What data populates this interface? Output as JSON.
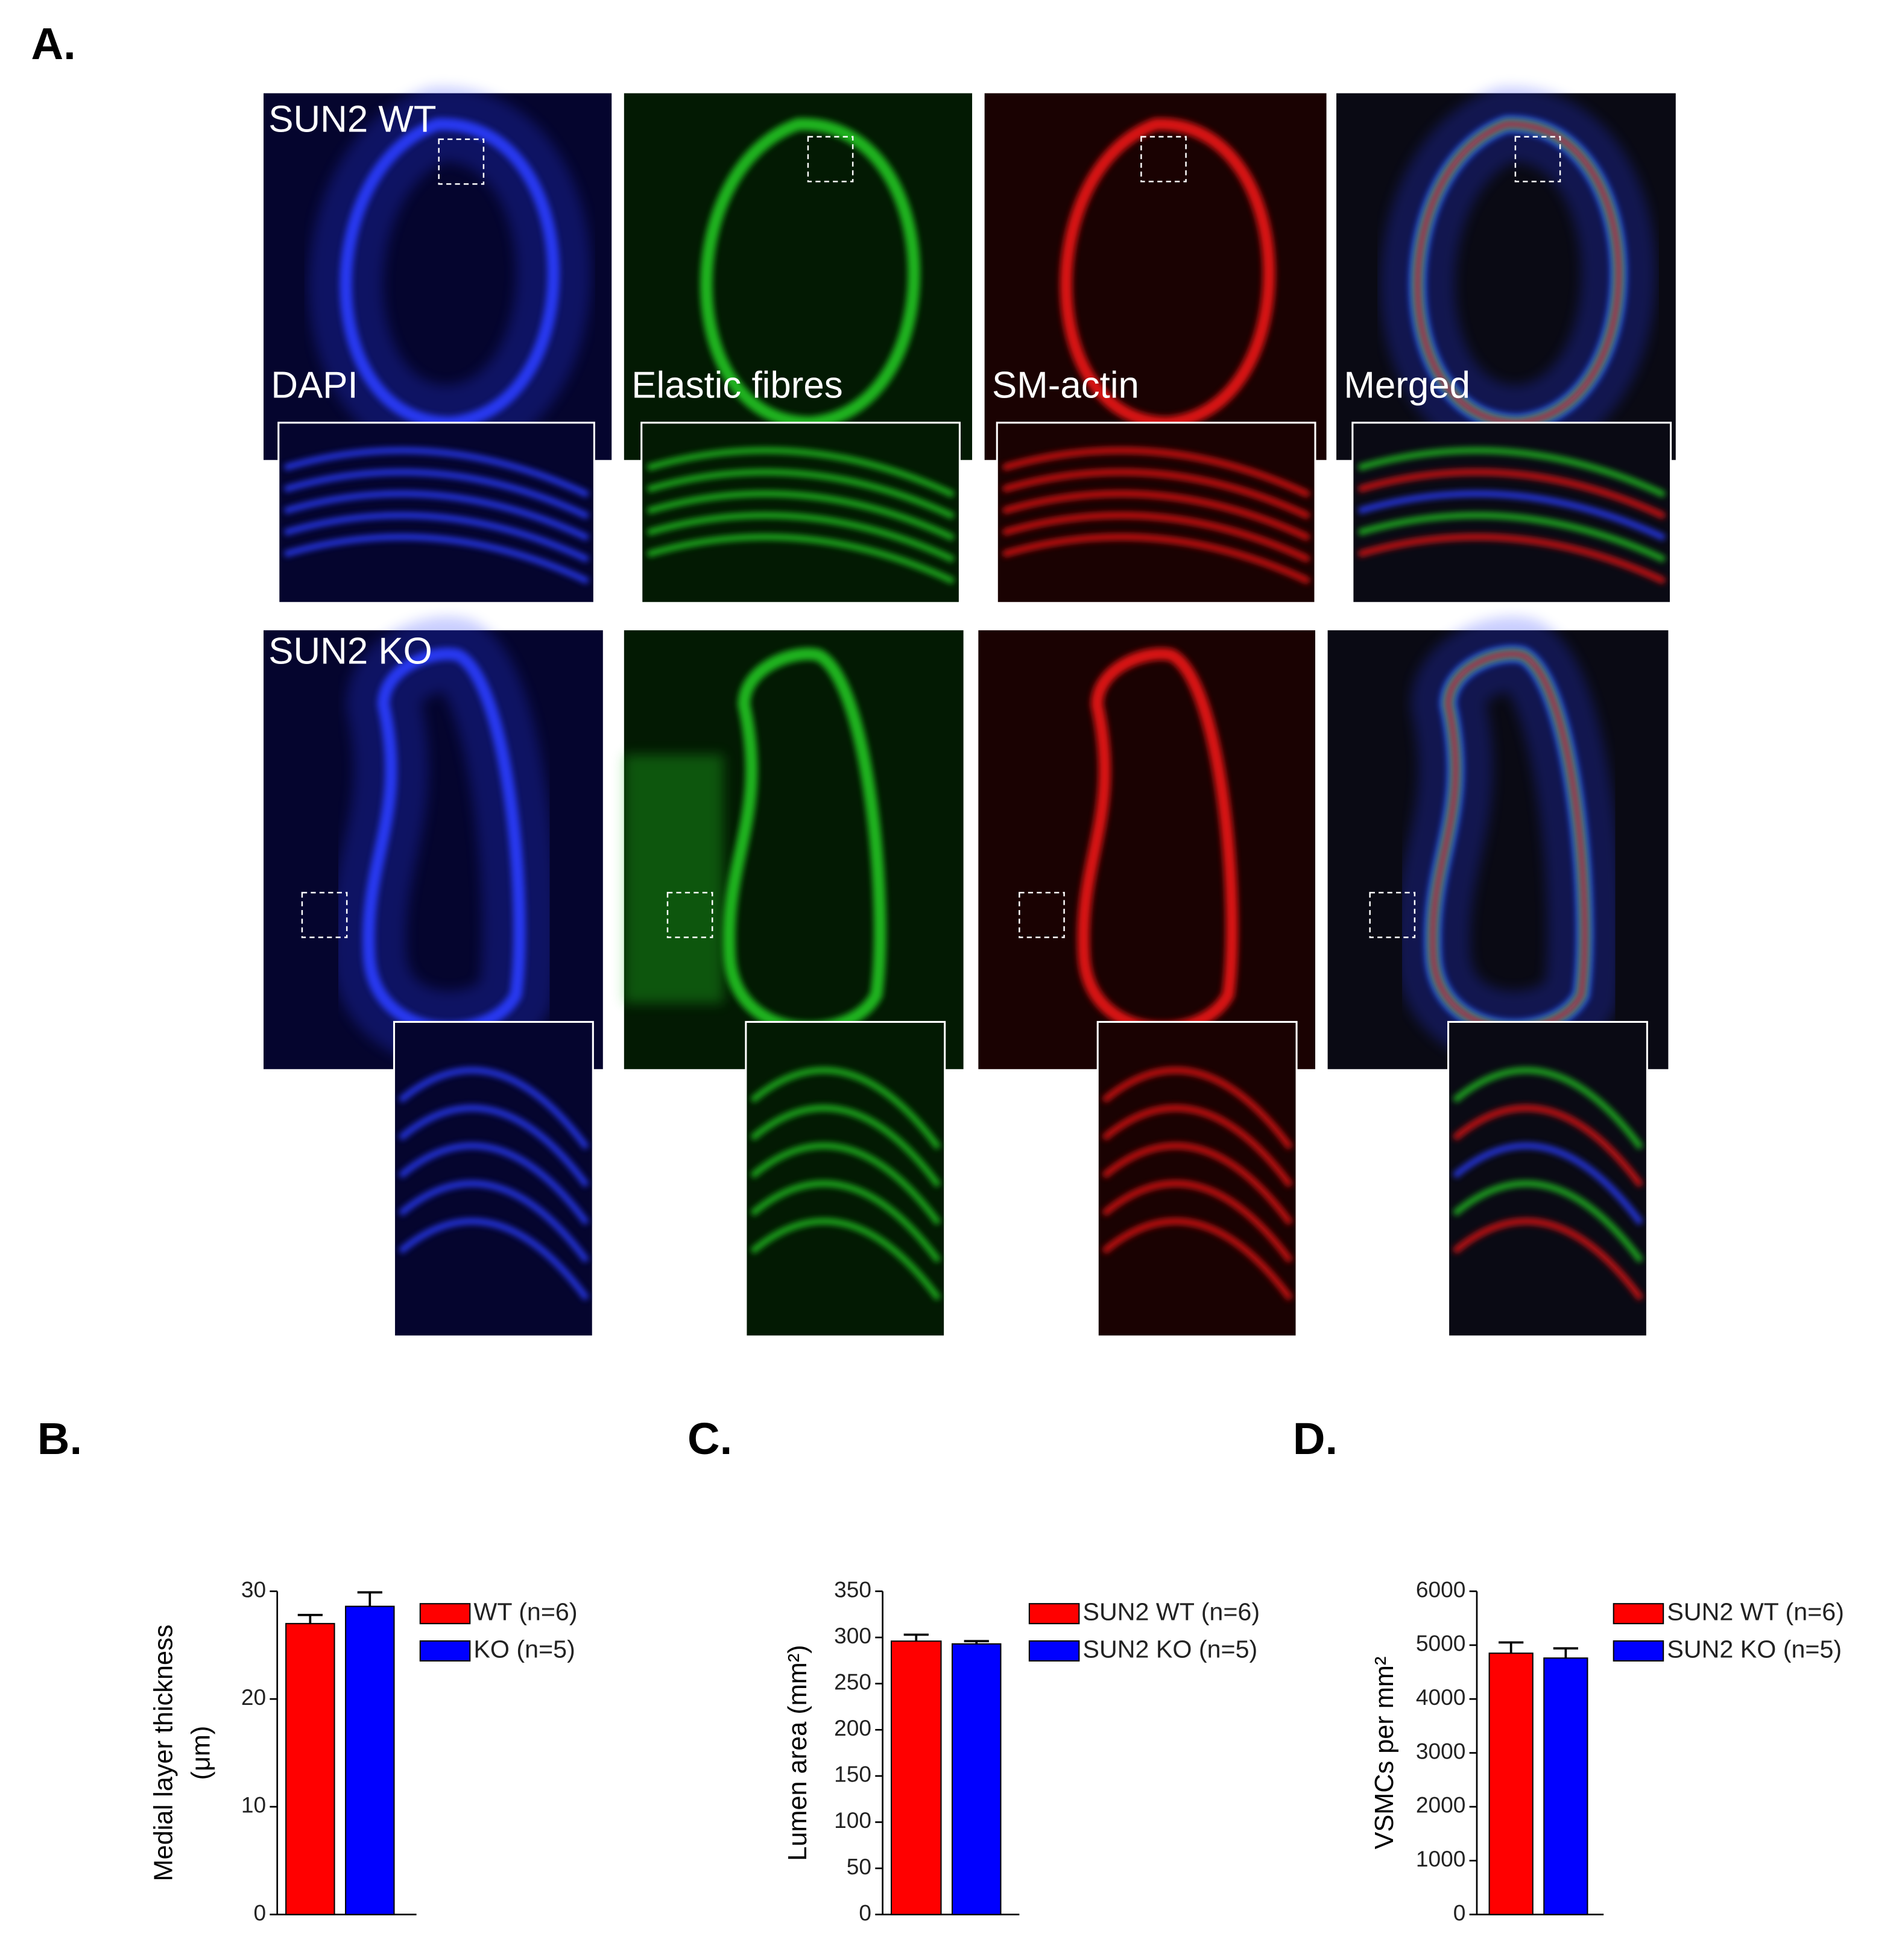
{
  "panel_labels": [
    "A.",
    "B.",
    "C.",
    "D."
  ],
  "figure_a": {
    "row_labels": [
      "SUN2 WT",
      "SUN2 KO"
    ],
    "channel_labels": [
      "DAPI",
      "Elastic fibres",
      "SM-actin",
      "Merged"
    ]
  },
  "chart_data": [
    {
      "type": "bar",
      "ylabel": [
        "Medial layer thickness",
        "(μm)"
      ],
      "series": [
        {
          "name": "WT (n=6)",
          "color": "#ff0000",
          "values": [
            27
          ],
          "errors": [
            0.8
          ]
        },
        {
          "name": "KO (n=5)",
          "color": "#0000ff",
          "values": [
            28.6
          ],
          "errors": [
            1.3
          ]
        }
      ],
      "ylim": [
        0,
        30
      ],
      "yticks": [
        0,
        10,
        20,
        30
      ]
    },
    {
      "type": "bar",
      "ylabel": [
        "Lumen area (mm²)"
      ],
      "series": [
        {
          "name": "SUN2 WT (n=6)",
          "color": "#ff0000",
          "values": [
            296
          ],
          "errors": [
            7
          ]
        },
        {
          "name": "SUN2 KO (n=5)",
          "color": "#0000ff",
          "values": [
            293
          ],
          "errors": [
            3
          ]
        }
      ],
      "ylim": [
        0,
        350
      ],
      "yticks": [
        0,
        50,
        100,
        150,
        200,
        250,
        300,
        350
      ]
    },
    {
      "type": "bar",
      "ylabel": [
        "VSMCs per mm²"
      ],
      "series": [
        {
          "name": "SUN2 WT (n=6)",
          "color": "#ff0000",
          "values": [
            4850
          ],
          "errors": [
            200
          ]
        },
        {
          "name": "SUN2 KO (n=5)",
          "color": "#0000ff",
          "values": [
            4760
          ],
          "errors": [
            180
          ]
        }
      ],
      "ylim": [
        0,
        6000
      ],
      "yticks": [
        0,
        1000,
        2000,
        3000,
        4000,
        5000,
        6000
      ]
    }
  ]
}
